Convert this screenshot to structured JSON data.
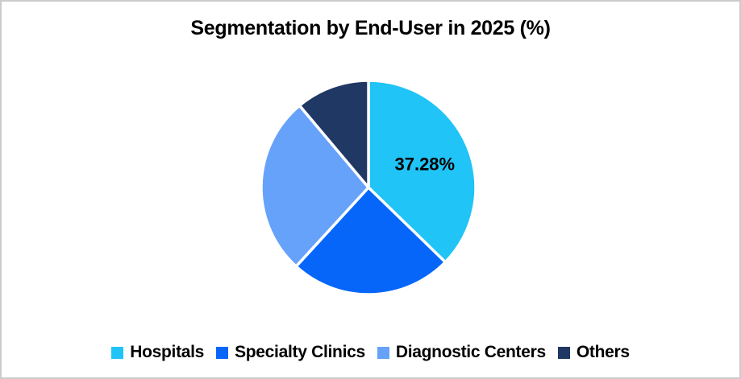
{
  "window": {
    "background": "#FFFFFF",
    "border_color": "#CBCBCB"
  },
  "chart_data": {
    "type": "pie",
    "title": "Segmentation by End-User in 2025 (%)",
    "legend_position": "bottom",
    "direction": "clockwise",
    "start_angle_deg": 0,
    "slices": [
      {
        "label": "Hospitals",
        "value": 37.28,
        "data_label": "37.28%",
        "color": "#20C4F6"
      },
      {
        "label": "Specialty Clinics",
        "value": 24.52,
        "data_label": "",
        "color": "#0666FA"
      },
      {
        "label": "Diagnostic Centers",
        "value": 27.08,
        "data_label": "",
        "color": "#66A2FA"
      },
      {
        "label": "Others",
        "value": 11.12,
        "data_label": "",
        "color": "#1F3864"
      }
    ],
    "data_label_color": "#000000",
    "separator_color": "#FFFFFF",
    "title_color": "#000000",
    "legend_text_color": "#000000"
  }
}
